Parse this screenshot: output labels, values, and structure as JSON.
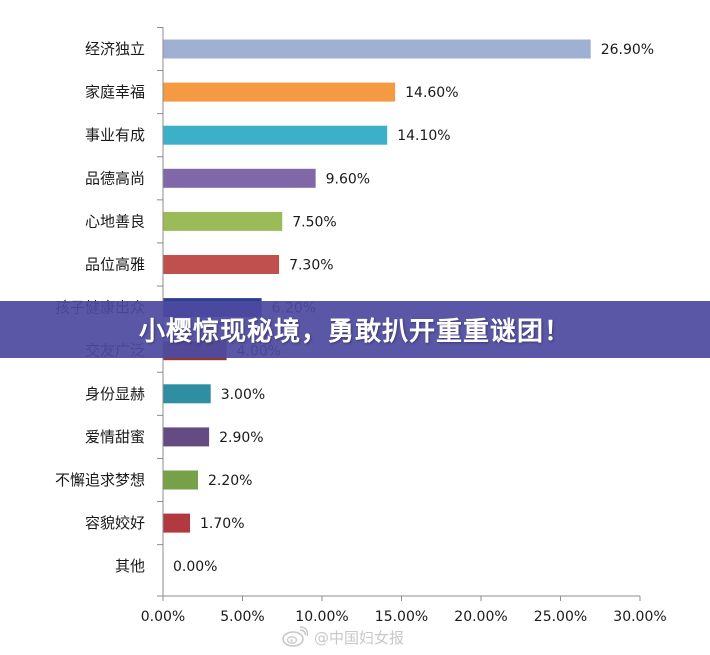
{
  "chart_data": {
    "type": "bar",
    "orientation": "horizontal",
    "categories": [
      "经济独立",
      "家庭幸福",
      "事业有成",
      "品德高尚",
      "心地善良",
      "品位高雅",
      "孩子健康出众",
      "交友广泛",
      "身份显赫",
      "爱情甜蜜",
      "不懈追求梦想",
      "容貌姣好",
      "其他"
    ],
    "values": [
      26.9,
      14.6,
      14.1,
      9.6,
      7.5,
      7.3,
      6.2,
      4.0,
      3.0,
      2.9,
      2.2,
      1.7,
      0.0
    ],
    "value_labels": [
      "26.90%",
      "14.60%",
      "14.10%",
      "9.60%",
      "7.50%",
      "7.30%",
      "6.20%",
      "4.00%",
      "3.00%",
      "2.90%",
      "2.20%",
      "1.70%",
      "0.00%"
    ],
    "colors": [
      "#9fb0d3",
      "#f59a43",
      "#3cb0c9",
      "#8067a8",
      "#9bbb58",
      "#c0504d",
      "#2c3f91",
      "#8b3a32",
      "#2e8fa3",
      "#644b82",
      "#76a04a",
      "#b1393f",
      "#9fb0d3"
    ],
    "xlim": [
      0,
      30
    ],
    "xticks": [
      "0.00%",
      "5.00%",
      "10.00%",
      "15.00%",
      "20.00%",
      "25.00%",
      "30.00%"
    ],
    "grid": false,
    "legend": "none"
  },
  "overlay": {
    "banner_text": "小樱惊现秘境，勇敢扒开重重谜团！",
    "banner_color": "#4e4aa0"
  },
  "watermark": {
    "text": "@中国妇女报",
    "icon": "weibo-icon"
  }
}
